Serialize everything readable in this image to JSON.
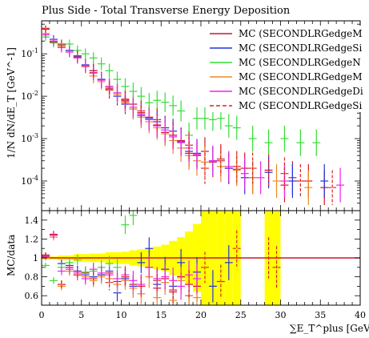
{
  "chart_data": [
    {
      "type": "scatter",
      "title": "Plus Side - Total Transverse Energy Deposition",
      "ylabel": "1/N dN/dE_T [GeV^-1]",
      "yscale": "log",
      "xlim": [
        0,
        40
      ],
      "ylim": [
        2e-05,
        0.6
      ],
      "grid": false,
      "legend_position": "top-right",
      "legend": [
        "MC (SECONDLRGedgeM",
        "MC (SECONDLRGedgeSi",
        "MC (SECONDLRGedgeN",
        "MC (SECONDLRGedgeM",
        "MC (SECONDLRGedgeDi",
        "MC (SECONDLRGedgeSi"
      ],
      "legend_colors": [
        "#d0142c",
        "#2233dd",
        "#33dd33",
        "#ee8822",
        "#ee22ee",
        "#dd2222"
      ],
      "yticks": [
        "10^-1",
        "10^-2",
        "10^-3",
        "10^-4"
      ],
      "series": [
        {
          "color": "#d0142c",
          "x": [
            0.5,
            1.5,
            2.5,
            3.5,
            4.5,
            5.5,
            6.5,
            7.5,
            8.5,
            9.5,
            10.5,
            11.5,
            12.5,
            13.5,
            14.5,
            15.5,
            16.5,
            17.5,
            18.5,
            19.5,
            20.5,
            21.5,
            22.5,
            23.5,
            24.5,
            25.5,
            26.5,
            28.5,
            30.5,
            31.5,
            33.5,
            35.5
          ],
          "y": [
            0.38,
            0.19,
            0.16,
            0.12,
            0.09,
            0.05,
            0.036,
            0.024,
            0.015,
            0.012,
            0.0085,
            0.0065,
            0.0041,
            0.0032,
            0.0021,
            0.0014,
            0.0012,
            0.0009,
            0.00045,
            0.0004,
            0.0005,
            0.00028,
            0.00033,
            0.0002,
            0.00019,
            0.0002,
            0.00012,
            0.00018,
            8e-05,
            0.00012,
            0.0001,
            7e-05
          ]
        },
        {
          "color": "#2233dd",
          "x": [
            0.5,
            1.5,
            2.5,
            3.5,
            4.5,
            5.5,
            6.5,
            7.5,
            8.5,
            9.5,
            10.5,
            11.5,
            12.5,
            13.5,
            14.5,
            15.5,
            16.5,
            17.5,
            18.5,
            19.5,
            21.5,
            23.5,
            25.5,
            28.5,
            31.5,
            35.5
          ],
          "y": [
            0.3,
            0.22,
            0.15,
            0.12,
            0.085,
            0.055,
            0.04,
            0.025,
            0.017,
            0.01,
            0.0065,
            0.005,
            0.0035,
            0.003,
            0.0025,
            0.0018,
            0.0015,
            0.00085,
            0.0005,
            0.00045,
            0.0003,
            0.0002,
            0.00012,
            0.00016,
            0.0001,
            0.0001
          ]
        },
        {
          "color": "#33dd33",
          "x": [
            0.5,
            1.5,
            2.5,
            3.5,
            4.5,
            5.5,
            6.5,
            7.5,
            8.5,
            9.5,
            10.5,
            11.5,
            12.5,
            13.5,
            14.5,
            15.5,
            16.5,
            17.5,
            18.5,
            19.5,
            20.5,
            21.5,
            22.5,
            23.5,
            24.5,
            26.5,
            28.5,
            30.5,
            32.5,
            34.5
          ],
          "y": [
            0.25,
            0.18,
            0.16,
            0.17,
            0.12,
            0.1,
            0.08,
            0.058,
            0.04,
            0.025,
            0.017,
            0.013,
            0.01,
            0.007,
            0.008,
            0.0072,
            0.006,
            0.0045,
            0.0012,
            0.003,
            0.003,
            0.0028,
            0.003,
            0.002,
            0.0018,
            0.001,
            0.0008,
            0.001,
            0.0008,
            0.0008
          ]
        },
        {
          "color": "#ee8822",
          "x": [
            0.5,
            1.5,
            2.5,
            3.5,
            4.5,
            5.5,
            6.5,
            7.5,
            8.5,
            9.5,
            10.5,
            11.5,
            12.5,
            13.5,
            14.5,
            15.5,
            16.5,
            17.5,
            18.5,
            19.5,
            20.5,
            22.5,
            24.5,
            26.5,
            29.5,
            33.5
          ],
          "y": [
            0.3,
            0.2,
            0.15,
            0.11,
            0.08,
            0.05,
            0.03,
            0.022,
            0.016,
            0.011,
            0.007,
            0.005,
            0.0032,
            0.0025,
            0.0018,
            0.0013,
            0.0009,
            0.0006,
            0.0004,
            0.0003,
            0.00028,
            0.00022,
            0.00018,
            0.00012,
            0.0001,
            7e-05
          ]
        },
        {
          "color": "#ee22ee",
          "x": [
            0.5,
            1.5,
            2.5,
            3.5,
            4.5,
            5.5,
            6.5,
            7.5,
            8.5,
            9.5,
            10.5,
            11.5,
            12.5,
            13.5,
            14.5,
            15.5,
            16.5,
            17.5,
            18.5,
            19.5,
            21.5,
            23.5,
            25.5,
            27.5,
            30.5,
            37.5
          ],
          "y": [
            0.28,
            0.2,
            0.14,
            0.11,
            0.08,
            0.052,
            0.035,
            0.024,
            0.017,
            0.012,
            0.0075,
            0.0055,
            0.0038,
            0.0028,
            0.002,
            0.0016,
            0.0011,
            0.0008,
            0.0006,
            0.00042,
            0.0003,
            0.00022,
            0.00015,
            0.00012,
            0.0001,
            8e-05
          ]
        },
        {
          "color": "#dd2222",
          "dashed": true,
          "x": [
            0.5,
            2.5,
            4.5,
            6.5,
            8.5,
            10.5,
            12.5,
            14.5,
            16.5,
            18.5,
            20.5,
            22.5,
            24.5,
            26.5,
            28.5,
            30.5,
            32.5,
            36.5
          ],
          "y": [
            0.4,
            0.17,
            0.09,
            0.04,
            0.014,
            0.008,
            0.0045,
            0.0028,
            0.0012,
            0.0007,
            0.0002,
            0.0003,
            0.00022,
            0.0002,
            0.00018,
            0.00015,
            0.0001,
            7e-05
          ]
        }
      ]
    },
    {
      "type": "scatter",
      "ylabel": "MC/data",
      "xlabel": "∑E_T^plus [GeV]",
      "xlim": [
        0,
        40
      ],
      "ylim": [
        0.5,
        1.5
      ],
      "grid": false,
      "reference_line": 1,
      "yticks": [
        "0.6",
        "0.8",
        "1",
        "1.2",
        "1.4"
      ],
      "xticks": [
        "0",
        "5",
        "10",
        "15",
        "20",
        "25",
        "30",
        "35",
        "40"
      ],
      "band": {
        "color": "#ffff00",
        "x": [
          0,
          2,
          4,
          6,
          8,
          10,
          11,
          12,
          13,
          14,
          15,
          16,
          17,
          18,
          19,
          20,
          21,
          22,
          23,
          24,
          25,
          28,
          30
        ],
        "lower": [
          0.985,
          0.975,
          0.96,
          0.955,
          0.94,
          0.935,
          0.92,
          0.91,
          0.9,
          0.88,
          0.86,
          0.82,
          0.78,
          0.72,
          0.64,
          0.5,
          0.5,
          0.5,
          0.5,
          0.5,
          0.5,
          0.5,
          0.5
        ],
        "upper": [
          1.015,
          1.025,
          1.04,
          1.045,
          1.06,
          1.065,
          1.08,
          1.09,
          1.1,
          1.12,
          1.14,
          1.18,
          1.22,
          1.28,
          1.36,
          1.5,
          1.5,
          1.5,
          1.5,
          1.5,
          1.5,
          1.5,
          1.5
        ],
        "x_end": [
          2,
          4,
          6,
          8,
          10,
          11,
          12,
          13,
          14,
          15,
          16,
          17,
          18,
          19,
          20,
          21,
          22,
          23,
          24,
          25,
          25,
          30,
          30
        ]
      },
      "series": [
        {
          "color": "#d0142c",
          "x": [
            0.5,
            1.5,
            2.5,
            3.5,
            4.5,
            5.5,
            6.5,
            7.5,
            8.5,
            9.5,
            10.5,
            11.5,
            12.5,
            13.5,
            14.5,
            15.5,
            16.5,
            17.5,
            18.5,
            19.5
          ],
          "y": [
            1.01,
            1.25,
            0.72,
            0.9,
            0.86,
            0.84,
            0.8,
            0.82,
            0.84,
            0.75,
            0.8,
            0.72,
            0.7,
            0.9,
            0.68,
            0.78,
            0.64,
            0.8,
            0.72,
            0.7
          ]
        },
        {
          "color": "#2233dd",
          "x": [
            0.5,
            1.5,
            2.5,
            3.5,
            4.5,
            5.5,
            6.5,
            7.5,
            8.5,
            9.5,
            10.5,
            11.5,
            12.5,
            13.5,
            14.5,
            15.5,
            16.5,
            17.5,
            18.5,
            19.5,
            21.5,
            23.5
          ],
          "y": [
            1.03,
            1.24,
            0.94,
            0.92,
            0.86,
            0.82,
            0.8,
            0.82,
            0.86,
            0.63,
            0.78,
            0.7,
            0.95,
            1.1,
            0.72,
            0.88,
            0.7,
            0.95,
            0.6,
            0.85,
            0.7,
            0.95
          ]
        },
        {
          "color": "#33dd33",
          "x": [
            0.5,
            1.5,
            2.5,
            3.5,
            4.5,
            5.5,
            6.5,
            7.5,
            8.5,
            9.5,
            10.5,
            11.5
          ],
          "y": [
            0.92,
            0.76,
            0.9,
            0.95,
            0.98,
            0.85,
            0.86,
            0.9,
            0.94,
            0.9,
            1.35,
            1.45
          ]
        },
        {
          "color": "#ee8822",
          "x": [
            0.5,
            1.5,
            2.5,
            3.5,
            4.5,
            5.5,
            6.5,
            7.5,
            8.5,
            9.5,
            10.5,
            11.5,
            12.5,
            13.5,
            14.5,
            15.5,
            16.5,
            17.5,
            18.5,
            19.5
          ],
          "y": [
            1.0,
            1.22,
            0.7,
            0.86,
            0.82,
            0.8,
            0.76,
            0.8,
            0.78,
            0.72,
            0.76,
            0.68,
            0.62,
            0.8,
            0.58,
            0.74,
            0.55,
            0.76,
            0.6,
            0.58
          ]
        },
        {
          "color": "#ee22ee",
          "x": [
            0.5,
            1.5,
            2.5,
            3.5,
            4.5,
            5.5,
            6.5,
            7.5,
            8.5,
            9.5,
            10.5,
            11.5,
            12.5,
            13.5,
            14.5,
            15.5,
            16.5,
            17.5,
            18.5,
            19.5
          ],
          "y": [
            1.02,
            1.24,
            0.86,
            0.88,
            0.84,
            0.78,
            0.88,
            0.84,
            0.82,
            0.78,
            0.82,
            0.76,
            0.72,
            0.9,
            0.78,
            0.8,
            0.76,
            0.7,
            0.82,
            0.78
          ]
        },
        {
          "color": "#dd2222",
          "dashed": true,
          "x": [
            0.5,
            2.5,
            4.5,
            6.5,
            8.5,
            10.5,
            12.5,
            14.5,
            16.5,
            18.5,
            20.5,
            22.5,
            24.5,
            28.5,
            29.5
          ],
          "y": [
            1.03,
            0.72,
            0.82,
            0.78,
            0.74,
            0.8,
            0.7,
            0.76,
            0.66,
            0.72,
            0.9,
            0.75,
            1.1,
            1.0,
            0.9
          ]
        }
      ]
    }
  ]
}
